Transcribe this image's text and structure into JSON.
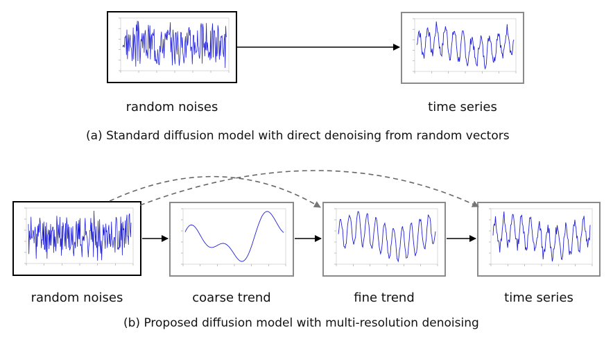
{
  "part_a": {
    "input_label": "random noises",
    "output_label": "time series",
    "caption": "(a) Standard diffusion model with direct denoising from random vectors"
  },
  "part_b": {
    "labels": [
      "random noises",
      "coarse trend",
      "fine trend",
      "time series"
    ],
    "caption": "(b) Proposed diffusion model with multi-resolution denoising"
  },
  "colors": {
    "signal": "#1f1fd6",
    "arrow": "#000000",
    "dashed_arrow": "#555555",
    "dark_border": "#000000",
    "grey_border": "#8a8a8a"
  }
}
